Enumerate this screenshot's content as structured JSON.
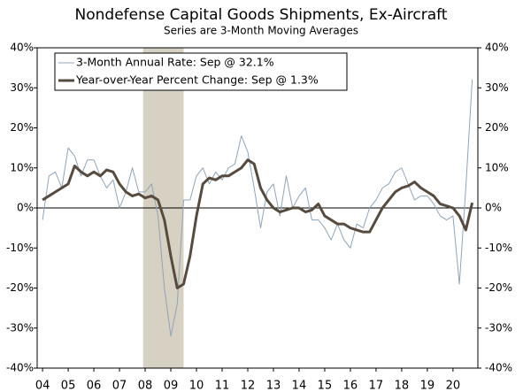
{
  "chart_data": {
    "type": "line",
    "title": "Nondefense Capital Goods Shipments, Ex-Aircraft",
    "subtitle": "Series are 3-Month Moving Averages",
    "x": [
      2004,
      2004.25,
      2004.5,
      2004.75,
      2005,
      2005.25,
      2005.5,
      2005.75,
      2006,
      2006.25,
      2006.5,
      2006.75,
      2007,
      2007.25,
      2007.5,
      2007.75,
      2008,
      2008.25,
      2008.5,
      2008.75,
      2009,
      2009.25,
      2009.5,
      2009.75,
      2010,
      2010.25,
      2010.5,
      2010.75,
      2011,
      2011.25,
      2011.5,
      2011.75,
      2012,
      2012.25,
      2012.5,
      2012.75,
      2013,
      2013.25,
      2013.5,
      2013.75,
      2014,
      2014.25,
      2014.5,
      2014.75,
      2015,
      2015.25,
      2015.5,
      2015.75,
      2016,
      2016.25,
      2016.5,
      2016.75,
      2017,
      2017.25,
      2017.5,
      2017.75,
      2018,
      2018.25,
      2018.5,
      2018.75,
      2019,
      2019.25,
      2019.5,
      2019.75,
      2020,
      2020.25,
      2020.5,
      2020.75
    ],
    "series": [
      {
        "name": "3-Month Annual Rate: Sep @ 32.1%",
        "color": "#8fa4b9",
        "width": 1,
        "values": [
          -3,
          8,
          9,
          5,
          15,
          13,
          8,
          12,
          12,
          8,
          5,
          7,
          0,
          4,
          10,
          4,
          4,
          6,
          -2,
          -20,
          -32,
          -24,
          2,
          2,
          8,
          10,
          6,
          9,
          7,
          10,
          11,
          18,
          14,
          5,
          -5,
          4,
          6,
          -2,
          8,
          0,
          3,
          5,
          -3,
          -3,
          -5,
          -8,
          -4,
          -8,
          -10,
          -4,
          -5,
          0,
          2,
          5,
          6,
          9,
          10,
          6,
          2,
          3,
          3,
          1,
          -2,
          -3,
          -2,
          -19,
          5,
          32.1
        ]
      },
      {
        "name": "Year-over-Year Percent Change: Sep @ 1.3%",
        "color": "#574b3f",
        "width": 3,
        "values": [
          2,
          3,
          4,
          5,
          6,
          10.5,
          9,
          8,
          9,
          8,
          9.5,
          9,
          6,
          4,
          3,
          3.5,
          2.5,
          3,
          2,
          -3,
          -12,
          -20,
          -19,
          -12,
          -2,
          6,
          7.5,
          7,
          8,
          8,
          9,
          10,
          12,
          11,
          5,
          2,
          0,
          -1,
          -0.5,
          0,
          0,
          -1,
          -0.5,
          1,
          -2,
          -3,
          -4,
          -4,
          -5,
          -5.5,
          -6,
          -6,
          -3,
          0,
          2,
          4,
          5,
          5.5,
          6.5,
          5,
          4,
          3,
          1,
          0.5,
          0,
          -2,
          -5.5,
          1.3
        ]
      }
    ],
    "shaded": [
      2007.92,
      2009.5
    ],
    "xlim": [
      2003.79,
      2020.97
    ],
    "xticks": [
      {
        "value": 2004,
        "label": "04"
      },
      {
        "value": 2005,
        "label": "05"
      },
      {
        "value": 2006,
        "label": "06"
      },
      {
        "value": 2007,
        "label": "07"
      },
      {
        "value": 2008,
        "label": "08"
      },
      {
        "value": 2009,
        "label": "09"
      },
      {
        "value": 2010,
        "label": "10"
      },
      {
        "value": 2011,
        "label": "11"
      },
      {
        "value": 2012,
        "label": "12"
      },
      {
        "value": 2013,
        "label": "13"
      },
      {
        "value": 2014,
        "label": "14"
      },
      {
        "value": 2015,
        "label": "15"
      },
      {
        "value": 2016,
        "label": "16"
      },
      {
        "value": 2017,
        "label": "17"
      },
      {
        "value": 2018,
        "label": "18"
      },
      {
        "value": 2019,
        "label": "19"
      },
      {
        "value": 2020,
        "label": "20"
      }
    ],
    "ylim": [
      -40,
      40
    ],
    "yticks": [
      {
        "value": -40,
        "label": "-40%"
      },
      {
        "value": -30,
        "label": "-30%"
      },
      {
        "value": -20,
        "label": "-20%"
      },
      {
        "value": -10,
        "label": "-10%"
      },
      {
        "value": 0,
        "label": "0%"
      },
      {
        "value": 10,
        "label": "10%"
      },
      {
        "value": 20,
        "label": "20%"
      },
      {
        "value": 30,
        "label": "30%"
      },
      {
        "value": 40,
        "label": "40%"
      }
    ],
    "legend": "top-left"
  }
}
